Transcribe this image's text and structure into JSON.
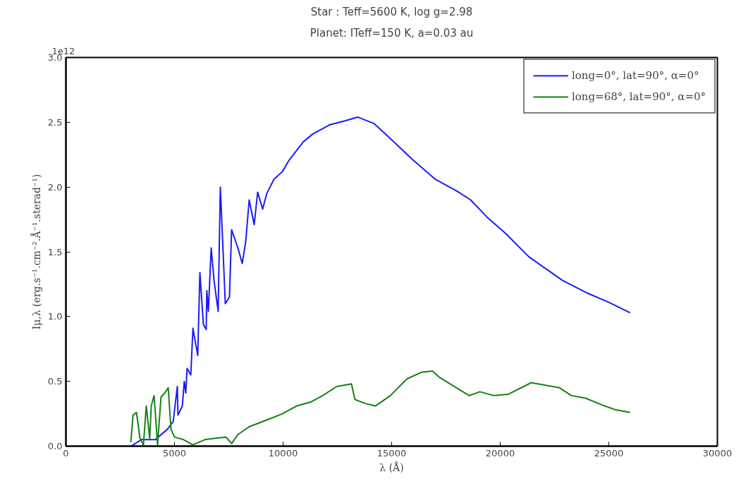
{
  "chart_data": {
    "type": "line",
    "title": "Star : Teff=5600 K, log g=2.98",
    "subtitle": "Planet: ITeff=150 K, a=0.03 au",
    "xlabel": "λ (Å)",
    "ylabel": "Iμ,λ (erg.s⁻¹.cm⁻².Å⁻¹.sterad⁻¹)",
    "annotations": [
      "1e12"
    ],
    "xlim": [
      0,
      30000
    ],
    "xticks": [
      0,
      5000,
      10000,
      15000,
      20000,
      25000,
      30000
    ],
    "ylim": [
      0,
      3.0
    ],
    "yticks": [
      {
        "value": 0,
        "label": "0.0"
      },
      0.5,
      {
        "value": 1,
        "label": "1.0"
      },
      1.5,
      {
        "value": 2,
        "label": "2.0"
      },
      2.5,
      {
        "value": 3,
        "label": "3.0"
      }
    ],
    "grid": false,
    "legend": "top right",
    "marker": "none",
    "line_style": "solid",
    "series": [
      {
        "name": "long=0°, lat=90°, α=0°",
        "color": "#1a1aff",
        "x": [
          3000,
          3470,
          4120,
          4670,
          4940,
          5130,
          5160,
          5360,
          5450,
          5520,
          5580,
          5750,
          5850,
          6070,
          6170,
          6330,
          6460,
          6490,
          6560,
          6690,
          6820,
          7010,
          7110,
          7180,
          7340,
          7530,
          7630,
          7920,
          8120,
          8280,
          8440,
          8670,
          8830,
          9060,
          9250,
          9580,
          9970,
          10290,
          10940,
          11370,
          12140,
          12830,
          13440,
          14190,
          14840,
          15910,
          17010,
          17990,
          18640,
          19380,
          20260,
          21330,
          22860,
          24030,
          25000,
          25980
        ],
        "values": [
          0,
          0.05,
          0.05,
          0.13,
          0.19,
          0.46,
          0.24,
          0.31,
          0.5,
          0.41,
          0.6,
          0.55,
          0.91,
          0.7,
          1.34,
          0.94,
          0.9,
          1.2,
          1.04,
          1.53,
          1.28,
          1.04,
          2.0,
          1.73,
          1.1,
          1.15,
          1.67,
          1.53,
          1.41,
          1.58,
          1.9,
          1.71,
          1.96,
          1.83,
          1.95,
          2.06,
          2.12,
          2.21,
          2.35,
          2.41,
          2.48,
          2.51,
          2.54,
          2.49,
          2.39,
          2.22,
          2.06,
          1.97,
          1.9,
          1.77,
          1.64,
          1.46,
          1.28,
          1.18,
          1.11,
          1.03
        ]
      },
      {
        "name": "long=68°, lat=90°, α=0°",
        "color": "#148214",
        "x": [
          2990,
          3090,
          3250,
          3410,
          3570,
          3700,
          3860,
          3930,
          4060,
          4220,
          4380,
          4550,
          4710,
          4840,
          5000,
          5420,
          5840,
          6400,
          6820,
          7370,
          7630,
          7920,
          8440,
          9220,
          9970,
          10620,
          11270,
          11820,
          12470,
          13150,
          13310,
          13770,
          14250,
          14940,
          15710,
          16370,
          16880,
          17210,
          17990,
          18570,
          19060,
          19710,
          20360,
          21430,
          22730,
          23280,
          23930,
          24810,
          25330,
          25980
        ],
        "values": [
          0.03,
          0.24,
          0.26,
          0.06,
          0.01,
          0.31,
          0.06,
          0.31,
          0.39,
          0.01,
          0.38,
          0.41,
          0.45,
          0.13,
          0.07,
          0.05,
          0.01,
          0.05,
          0.06,
          0.07,
          0.02,
          0.09,
          0.15,
          0.2,
          0.25,
          0.31,
          0.34,
          0.39,
          0.46,
          0.48,
          0.36,
          0.33,
          0.31,
          0.39,
          0.52,
          0.57,
          0.58,
          0.53,
          0.45,
          0.39,
          0.42,
          0.39,
          0.4,
          0.49,
          0.45,
          0.39,
          0.37,
          0.31,
          0.28,
          0.26
        ]
      }
    ]
  }
}
